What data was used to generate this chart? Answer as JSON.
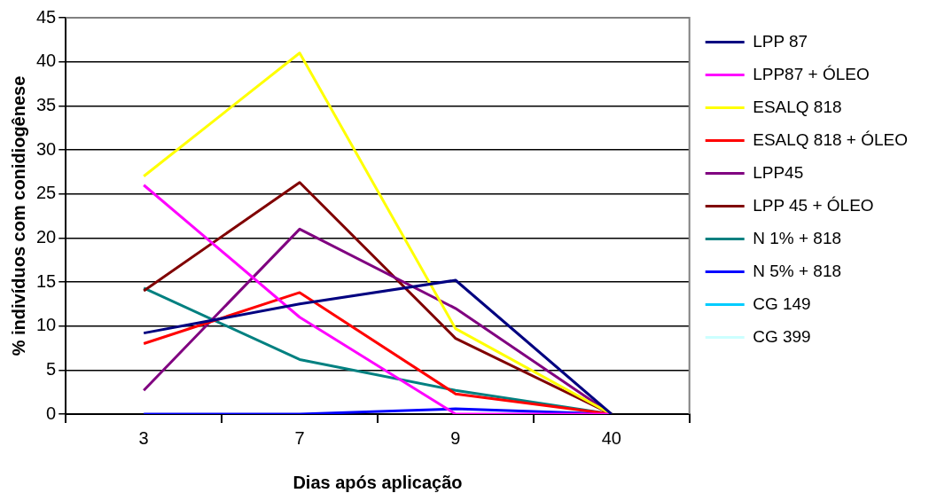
{
  "chart_data": {
    "type": "line",
    "xlabel": "Dias após aplicação",
    "ylabel": "% indivíduos com conidiogênese",
    "categories": [
      "3",
      "7",
      "9",
      "40"
    ],
    "series": [
      {
        "name": "LPP 87",
        "color": "#000080",
        "values": [
          9.2,
          12.5,
          15.2,
          0
        ]
      },
      {
        "name": "LPP87 + ÓLEO",
        "color": "#ff00ff",
        "values": [
          26,
          11,
          0,
          0
        ]
      },
      {
        "name": "ESALQ 818",
        "color": "#ffff00",
        "values": [
          27,
          41,
          9.7,
          0
        ]
      },
      {
        "name": "ESALQ 818 + ÓLEO",
        "color": "#ff0000",
        "values": [
          8,
          13.8,
          2.3,
          0
        ]
      },
      {
        "name": "LPP45",
        "color": "#800080",
        "values": [
          2.7,
          21,
          12,
          0
        ]
      },
      {
        "name": "LPP 45 + ÓLEO",
        "color": "#800000",
        "values": [
          14,
          26.3,
          8.6,
          0
        ]
      },
      {
        "name": "N 1% + 818",
        "color": "#008080",
        "values": [
          14.3,
          6.2,
          2.7,
          0
        ]
      },
      {
        "name": "N 5% + 818",
        "color": "#0000ff",
        "values": [
          0,
          0,
          0.6,
          0
        ]
      },
      {
        "name": "CG 149",
        "color": "#00ccff",
        "values": [
          null,
          null,
          null,
          null
        ]
      },
      {
        "name": "CG 399",
        "color": "#ccffff",
        "values": [
          null,
          null,
          null,
          null
        ]
      }
    ],
    "ylim": [
      0,
      45
    ],
    "yticks": [
      0,
      5,
      10,
      15,
      20,
      25,
      30,
      35,
      40,
      45
    ],
    "grid": "y",
    "legend": "right",
    "marker": "none",
    "line_style": "solid"
  }
}
